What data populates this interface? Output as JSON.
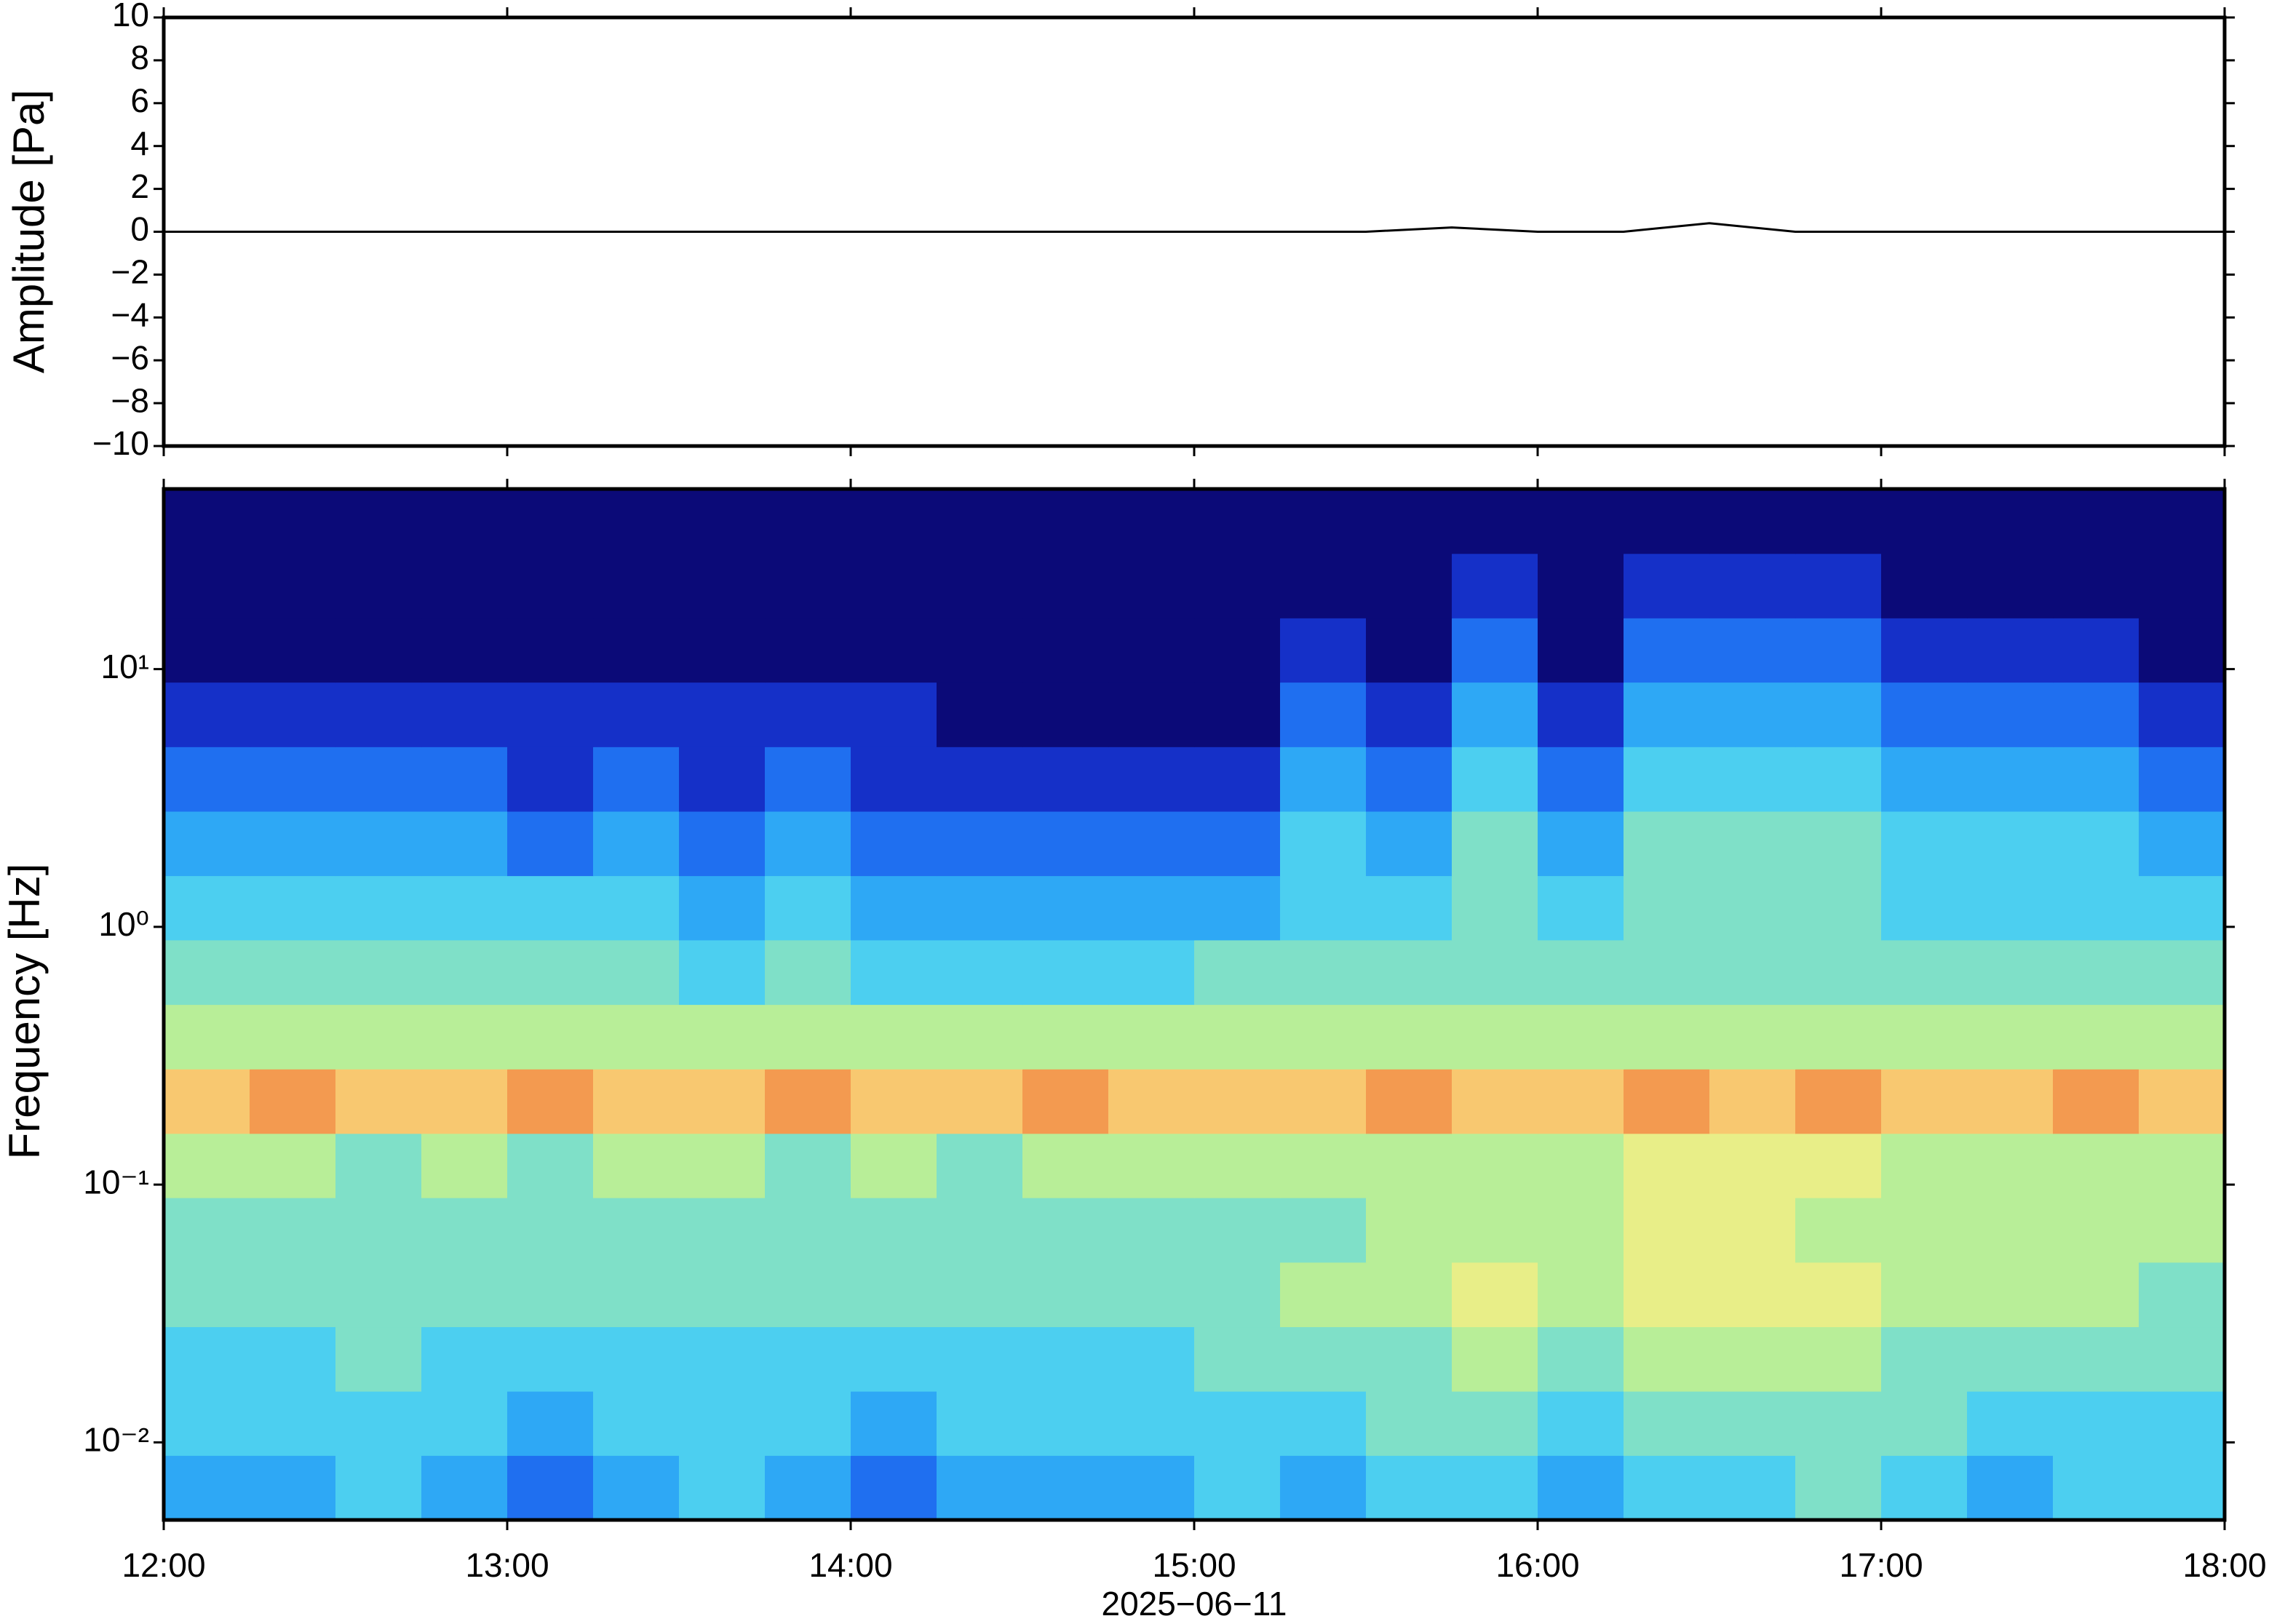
{
  "chart_data": [
    {
      "type": "line",
      "ylabel": "Amplitude [Pa]",
      "color": "#000000",
      "x": [
        "12:00",
        "12:15",
        "12:30",
        "12:45",
        "13:00",
        "13:15",
        "13:30",
        "13:45",
        "14:00",
        "14:15",
        "14:30",
        "14:45",
        "15:00",
        "15:15",
        "15:30",
        "15:45",
        "16:00",
        "16:15",
        "16:30",
        "16:45",
        "17:00",
        "17:15",
        "17:30",
        "17:45",
        "18:00"
      ],
      "values": [
        0,
        0,
        0,
        0,
        0,
        0,
        0,
        0,
        0,
        0,
        0,
        0,
        0,
        0,
        0,
        0.2,
        0,
        0,
        0.4,
        0,
        0,
        0,
        0,
        0,
        0
      ],
      "xlim": [
        "12:00",
        "18:00"
      ],
      "ylim": [
        -10,
        10
      ],
      "yticks": [
        {
          "value": -10,
          "label": "−10"
        },
        {
          "value": -8,
          "label": "−8"
        },
        {
          "value": -6,
          "label": "−6"
        },
        {
          "value": -4,
          "label": "−4"
        },
        {
          "value": -2,
          "label": "−2"
        },
        0,
        2,
        4,
        6,
        8,
        10
      ]
    },
    {
      "type": "heatmap",
      "ylabel": "Frequency [Hz]",
      "xlabel": "2025−06−11",
      "xlim": [
        "12:00",
        "18:00"
      ],
      "xticks": [
        "12:00",
        "13:00",
        "14:00",
        "15:00",
        "16:00",
        "17:00",
        "18:00"
      ],
      "ylim": [
        0.005,
        50
      ],
      "yscale": "log",
      "yticks": [
        {
          "value": 0.01,
          "label": "10⁻²"
        },
        {
          "value": 0.1,
          "label": "10⁻¹"
        },
        {
          "value": 1,
          "label": "10⁰"
        },
        {
          "value": 10,
          "label": "10¹"
        }
      ],
      "xbins": [
        "12:00",
        "12:15",
        "12:30",
        "12:45",
        "13:00",
        "13:15",
        "13:30",
        "13:45",
        "14:00",
        "14:15",
        "14:30",
        "14:45",
        "15:00",
        "15:15",
        "15:30",
        "15:45",
        "16:00",
        "16:15",
        "16:30",
        "16:45",
        "17:00",
        "17:15",
        "17:30",
        "17:45",
        "18:00"
      ],
      "ybins": [
        0.005,
        0.0089,
        0.0158,
        0.0281,
        0.05,
        0.089,
        0.158,
        0.281,
        0.5,
        0.89,
        1.58,
        2.81,
        5,
        8.9,
        15.8,
        28.1,
        50
      ],
      "colormap": [
        "#0b0a78",
        "#1530c8",
        "#1f6ff0",
        "#2ea8f5",
        "#4ccff0",
        "#7fe0c8",
        "#b8ee98",
        "#e8ee88",
        "#f8c870",
        "#f39a50",
        "#e05030"
      ],
      "values": [
        [
          3,
          3,
          4,
          3,
          2,
          3,
          4,
          3,
          2,
          3,
          3,
          3,
          4,
          3,
          4,
          4,
          3,
          4,
          4,
          5,
          4,
          3,
          4,
          4
        ],
        [
          4,
          4,
          4,
          4,
          3,
          4,
          4,
          4,
          3,
          4,
          4,
          4,
          4,
          4,
          5,
          5,
          4,
          5,
          5,
          5,
          5,
          4,
          4,
          4
        ],
        [
          4,
          4,
          5,
          4,
          4,
          4,
          4,
          4,
          4,
          4,
          4,
          4,
          5,
          5,
          5,
          6,
          5,
          6,
          6,
          6,
          5,
          5,
          5,
          5
        ],
        [
          5,
          5,
          5,
          5,
          5,
          5,
          5,
          5,
          5,
          5,
          5,
          5,
          5,
          6,
          6,
          7,
          6,
          7,
          7,
          7,
          6,
          6,
          6,
          5
        ],
        [
          5,
          5,
          5,
          5,
          5,
          5,
          5,
          5,
          5,
          5,
          5,
          5,
          5,
          5,
          6,
          6,
          6,
          7,
          7,
          6,
          6,
          6,
          6,
          6
        ],
        [
          6,
          6,
          5,
          6,
          5,
          6,
          6,
          5,
          6,
          5,
          6,
          6,
          6,
          6,
          6,
          6,
          6,
          7,
          7,
          7,
          6,
          6,
          6,
          6
        ],
        [
          8,
          9,
          8,
          8,
          9,
          8,
          8,
          9,
          8,
          8,
          9,
          8,
          8,
          8,
          9,
          8,
          8,
          9,
          8,
          9,
          8,
          8,
          9,
          8
        ],
        [
          6,
          6,
          6,
          6,
          6,
          6,
          6,
          6,
          6,
          6,
          6,
          6,
          6,
          6,
          6,
          6,
          6,
          6,
          6,
          6,
          6,
          6,
          6,
          6
        ],
        [
          5,
          5,
          5,
          5,
          5,
          5,
          4,
          5,
          4,
          4,
          4,
          4,
          5,
          5,
          5,
          5,
          5,
          5,
          5,
          5,
          5,
          5,
          5,
          5
        ],
        [
          4,
          4,
          4,
          4,
          4,
          4,
          3,
          4,
          3,
          3,
          3,
          3,
          3,
          4,
          4,
          5,
          4,
          5,
          5,
          5,
          4,
          4,
          4,
          4
        ],
        [
          3,
          3,
          3,
          3,
          2,
          3,
          2,
          3,
          2,
          2,
          2,
          2,
          2,
          4,
          3,
          5,
          3,
          5,
          5,
          5,
          4,
          4,
          4,
          3
        ],
        [
          2,
          2,
          2,
          2,
          1,
          2,
          1,
          2,
          1,
          1,
          1,
          1,
          1,
          3,
          2,
          4,
          2,
          4,
          4,
          4,
          3,
          3,
          3,
          2
        ],
        [
          1,
          1,
          1,
          1,
          1,
          1,
          1,
          1,
          1,
          0,
          0,
          0,
          0,
          2,
          1,
          3,
          1,
          3,
          3,
          3,
          2,
          2,
          2,
          1
        ],
        [
          0,
          0,
          0,
          0,
          0,
          0,
          0,
          0,
          0,
          0,
          0,
          0,
          0,
          1,
          0,
          2,
          0,
          2,
          2,
          2,
          1,
          1,
          1,
          0
        ],
        [
          0,
          0,
          0,
          0,
          0,
          0,
          0,
          0,
          0,
          0,
          0,
          0,
          0,
          0,
          0,
          1,
          0,
          1,
          1,
          1,
          0,
          0,
          0,
          0
        ],
        [
          0,
          0,
          0,
          0,
          0,
          0,
          0,
          0,
          0,
          0,
          0,
          0,
          0,
          0,
          0,
          0,
          0,
          0,
          0,
          0,
          0,
          0,
          0,
          0
        ]
      ]
    }
  ]
}
